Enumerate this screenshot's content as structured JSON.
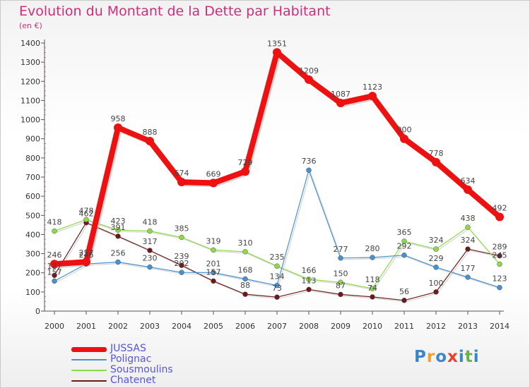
{
  "title": "Evolution du Montant de la Dette par Habitant",
  "subtitle": "(en €)",
  "logo": {
    "text": "Proxiti",
    "colors": [
      "#3a86c8",
      "#f0a030",
      "#3a86c8",
      "#e8402a",
      "#3a86c8",
      "#6ab04c",
      "#3a86c8"
    ]
  },
  "chart_data": {
    "type": "line",
    "title": "Evolution du Montant de la Dette par Habitant",
    "ylabel": "(en €)",
    "ylim": [
      0,
      1400
    ],
    "yticks": [
      0,
      100,
      200,
      300,
      400,
      500,
      600,
      700,
      800,
      900,
      1000,
      1100,
      1200,
      1300,
      1400
    ],
    "x": [
      "2000",
      "2001",
      "2002",
      "2003",
      "2004",
      "2005",
      "2006",
      "2007",
      "2008",
      "2009",
      "2010",
      "2011",
      "2012",
      "2013",
      "2014"
    ],
    "grid": false,
    "legend": "bottom-left",
    "series": [
      {
        "name": "JUSSAS",
        "color": "#ee1111",
        "values": [
          246,
          257,
          958,
          888,
          674,
          669,
          729,
          1351,
          1209,
          1087,
          1123,
          900,
          778,
          634,
          492
        ]
      },
      {
        "name": "Polignac",
        "color": "#4a90cc",
        "values": [
          157,
          246,
          256,
          230,
          202,
          201,
          168,
          134,
          736,
          277,
          280,
          292,
          229,
          177,
          123
        ]
      },
      {
        "name": "Sousmoulins",
        "color": "#8ed84a",
        "values": [
          418,
          478,
          423,
          418,
          385,
          319,
          310,
          235,
          166,
          150,
          118,
          365,
          324,
          438,
          245
        ]
      },
      {
        "name": "Chatenet",
        "color": "#6b1a1a",
        "values": [
          187,
          462,
          391,
          317,
          239,
          157,
          88,
          73,
          113,
          87,
          74,
          56,
          100,
          324,
          289
        ]
      }
    ]
  }
}
